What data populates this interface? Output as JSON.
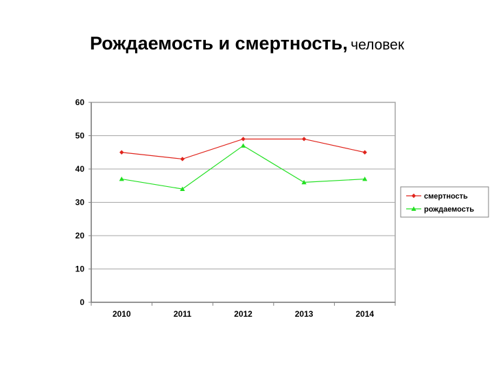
{
  "slide": {
    "title": "Рождаемость и смертность,",
    "subtitle": "человек"
  },
  "chart_data": {
    "type": "line",
    "categories": [
      "2010",
      "2011",
      "2012",
      "2013",
      "2014"
    ],
    "series": [
      {
        "name": "смертность",
        "values": [
          45,
          43,
          49,
          49,
          45
        ],
        "color": "#e0241c",
        "marker": "diamond"
      },
      {
        "name": "рождаемость",
        "values": [
          37,
          34,
          47,
          36,
          37
        ],
        "color": "#22e022",
        "marker": "triangle"
      }
    ],
    "ylim": [
      0,
      60
    ],
    "yticks": [
      0,
      10,
      20,
      30,
      40,
      50,
      60
    ],
    "grid": "horizontal",
    "legend": "right"
  }
}
